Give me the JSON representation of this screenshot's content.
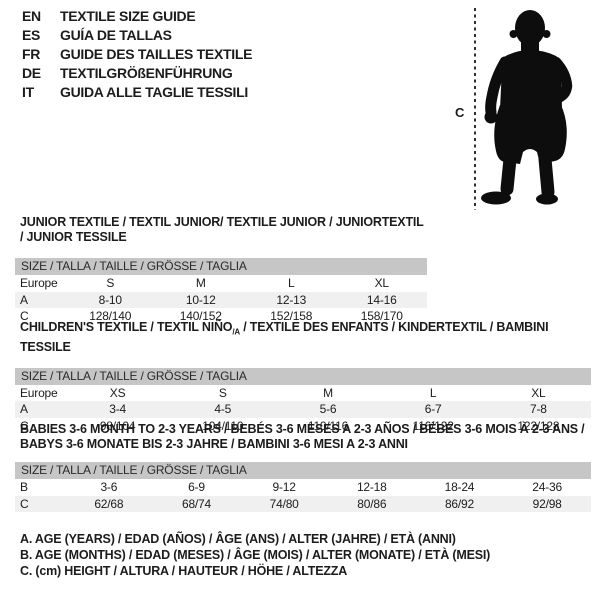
{
  "languages": [
    {
      "code": "EN",
      "label": "TEXTILE SIZE GUIDE"
    },
    {
      "code": "ES",
      "label": "GUÍA DE TALLAS"
    },
    {
      "code": "FR",
      "label": "GUIDE DES TAILLES TEXTILE"
    },
    {
      "code": "DE",
      "label": "TEXTILGRÖßENFÜHRUNG"
    },
    {
      "code": "IT",
      "label": "GUIDA ALLE TAGLIE TESSILI"
    }
  ],
  "figure": {
    "image_name": "toddler-silhouette",
    "measure_label": "C"
  },
  "colors": {
    "band_gray": "#c6c6c6",
    "row_shade": "#f0f0f0",
    "text": "#1c1c1c",
    "silhouette": "#0d0d0d"
  },
  "tables": [
    {
      "title_parts": [
        {
          "text": "JUNIOR TEXTILE / TEXTIL JUNIOR/ TEXTILE JUNIOR / JUNIORTEXTIL / JUNIOR TESSILE"
        }
      ],
      "size_band": "SIZE / TALLA / TAILLE / GRÖSSE / TAGLIA",
      "rows": [
        {
          "label": "Europe",
          "values": [
            "S",
            "M",
            "L",
            "XL"
          ],
          "shaded": false
        },
        {
          "label": "A",
          "values": [
            "8-10",
            "10-12",
            "12-13",
            "14-16"
          ],
          "shaded": true
        },
        {
          "label": "C",
          "values": [
            "128/140",
            "140/152",
            "152/158",
            "158/170"
          ],
          "shaded": false
        }
      ]
    },
    {
      "title_parts": [
        {
          "text": "CHILDREN'S TEXTILE / TEXTIL NIÑO"
        },
        {
          "sub": "/A"
        },
        {
          "text": " / TEXTILE DES ENFANTS / KINDERTEXTIL / BAMBINI TESSILE"
        }
      ],
      "size_band": "SIZE / TALLA / TAILLE / GRÖSSE / TAGLIA",
      "rows": [
        {
          "label": "Europe",
          "values": [
            "XS",
            "S",
            "M",
            "L",
            "XL"
          ],
          "shaded": false
        },
        {
          "label": "A",
          "values": [
            "3-4",
            "4-5",
            "5-6",
            "6-7",
            "7-8"
          ],
          "shaded": true
        },
        {
          "label": "C",
          "values": [
            "98/104",
            "104/110",
            "110/116",
            "116/122",
            "122/128"
          ],
          "shaded": false
        }
      ]
    },
    {
      "title_parts": [
        {
          "text": "BABIES 3-6 MONTH TO 2-3 YEARS / BEBÉS 3-6 MESES A 2-3 AÑOS / BÉBÉS 3-6 MOIS À 2-3 ANS /"
        },
        {
          "br": true
        },
        {
          "text": "BABYS 3-6 MONATE BIS 2-3 JAHRE / BAMBINI 3-6 MESI A 2-3 ANNI"
        }
      ],
      "size_band": "SIZE / TALLA / TAILLE / GRÖSSE / TAGLIA",
      "rows": [
        {
          "label": "B",
          "values": [
            "3-6",
            "6-9",
            "9-12",
            "12-18",
            "18-24",
            "24-36"
          ],
          "shaded": false
        },
        {
          "label": "C",
          "values": [
            "62/68",
            "68/74",
            "74/80",
            "80/86",
            "86/92",
            "92/98"
          ],
          "shaded": true
        }
      ]
    }
  ],
  "footnotes": [
    "A. AGE (YEARS) / EDAD (AÑOS) / ÂGE (ANS) / ALTER (JAHRE) / ETÀ (ANNI)",
    "B. AGE (MONTHS) / EDAD (MESES) / ÂGE (MOIS) / ALTER (MONATE) / ETÀ (MESI)",
    "C. (cm) HEIGHT / ALTURA / HAUTEUR / HÖHE / ALTEZZA"
  ]
}
